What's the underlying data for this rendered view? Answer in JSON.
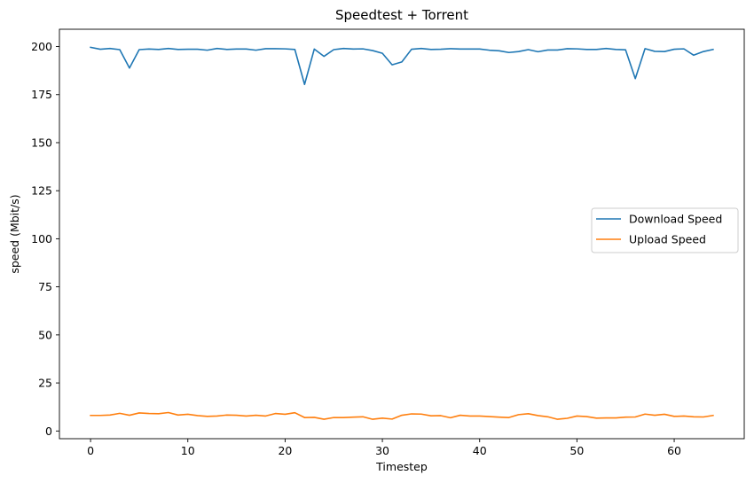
{
  "chart_data": {
    "type": "line",
    "title": "Speedtest + Torrent",
    "xlabel": "Timestep",
    "ylabel": "speed (Mbit/s)",
    "xlim": [
      -3.2,
      67.2
    ],
    "ylim": [
      -4.0,
      209.0
    ],
    "xticks": [
      0,
      10,
      20,
      30,
      40,
      50,
      60
    ],
    "yticks": [
      0,
      25,
      50,
      75,
      100,
      125,
      150,
      175,
      200
    ],
    "grid": false,
    "legend_position": "center-right",
    "x": [
      0,
      1,
      2,
      3,
      4,
      5,
      6,
      7,
      8,
      9,
      10,
      11,
      12,
      13,
      14,
      15,
      16,
      17,
      18,
      19,
      20,
      21,
      22,
      23,
      24,
      25,
      26,
      27,
      28,
      29,
      30,
      31,
      32,
      33,
      34,
      35,
      36,
      37,
      38,
      39,
      40,
      41,
      42,
      43,
      44,
      45,
      46,
      47,
      48,
      49,
      50,
      51,
      52,
      53,
      54,
      55,
      56,
      57,
      58,
      59,
      60,
      61,
      62,
      63,
      64
    ],
    "series": [
      {
        "name": "Download Speed",
        "color": "#1f77b4",
        "values": [
          199.6,
          198.6,
          199.0,
          198.4,
          188.8,
          198.4,
          198.7,
          198.5,
          199.0,
          198.5,
          198.6,
          198.6,
          198.1,
          199.0,
          198.5,
          198.7,
          198.7,
          198.1,
          198.9,
          198.9,
          198.8,
          198.5,
          180.3,
          198.7,
          194.9,
          198.4,
          199.0,
          198.7,
          198.8,
          197.9,
          196.5,
          190.5,
          192.0,
          198.6,
          199.0,
          198.5,
          198.6,
          198.9,
          198.7,
          198.7,
          198.7,
          198.1,
          197.8,
          196.9,
          197.4,
          198.4,
          197.3,
          198.2,
          198.2,
          198.9,
          198.8,
          198.5,
          198.5,
          199.0,
          198.5,
          198.3,
          183.3,
          198.9,
          197.5,
          197.4,
          198.6,
          198.8,
          195.5,
          197.4,
          198.5
        ]
      },
      {
        "name": "Upload Speed",
        "color": "#ff7f0e",
        "values": [
          8.1,
          8.1,
          8.3,
          9.2,
          8.2,
          9.4,
          9.1,
          9.0,
          9.6,
          8.3,
          8.7,
          8.0,
          7.6,
          7.8,
          8.3,
          8.2,
          7.8,
          8.2,
          7.8,
          9.1,
          8.7,
          9.5,
          7.0,
          7.1,
          6.1,
          7.0,
          7.0,
          7.2,
          7.4,
          6.1,
          6.7,
          6.2,
          8.2,
          8.9,
          8.8,
          7.9,
          8.0,
          6.9,
          8.2,
          7.8,
          7.8,
          7.5,
          7.2,
          7.0,
          8.5,
          9.0,
          8.0,
          7.4,
          6.1,
          6.6,
          7.8,
          7.5,
          6.7,
          6.8,
          6.8,
          7.2,
          7.3,
          8.8,
          8.2,
          8.7,
          7.6,
          7.8,
          7.4,
          7.3,
          8.1
        ]
      }
    ]
  }
}
